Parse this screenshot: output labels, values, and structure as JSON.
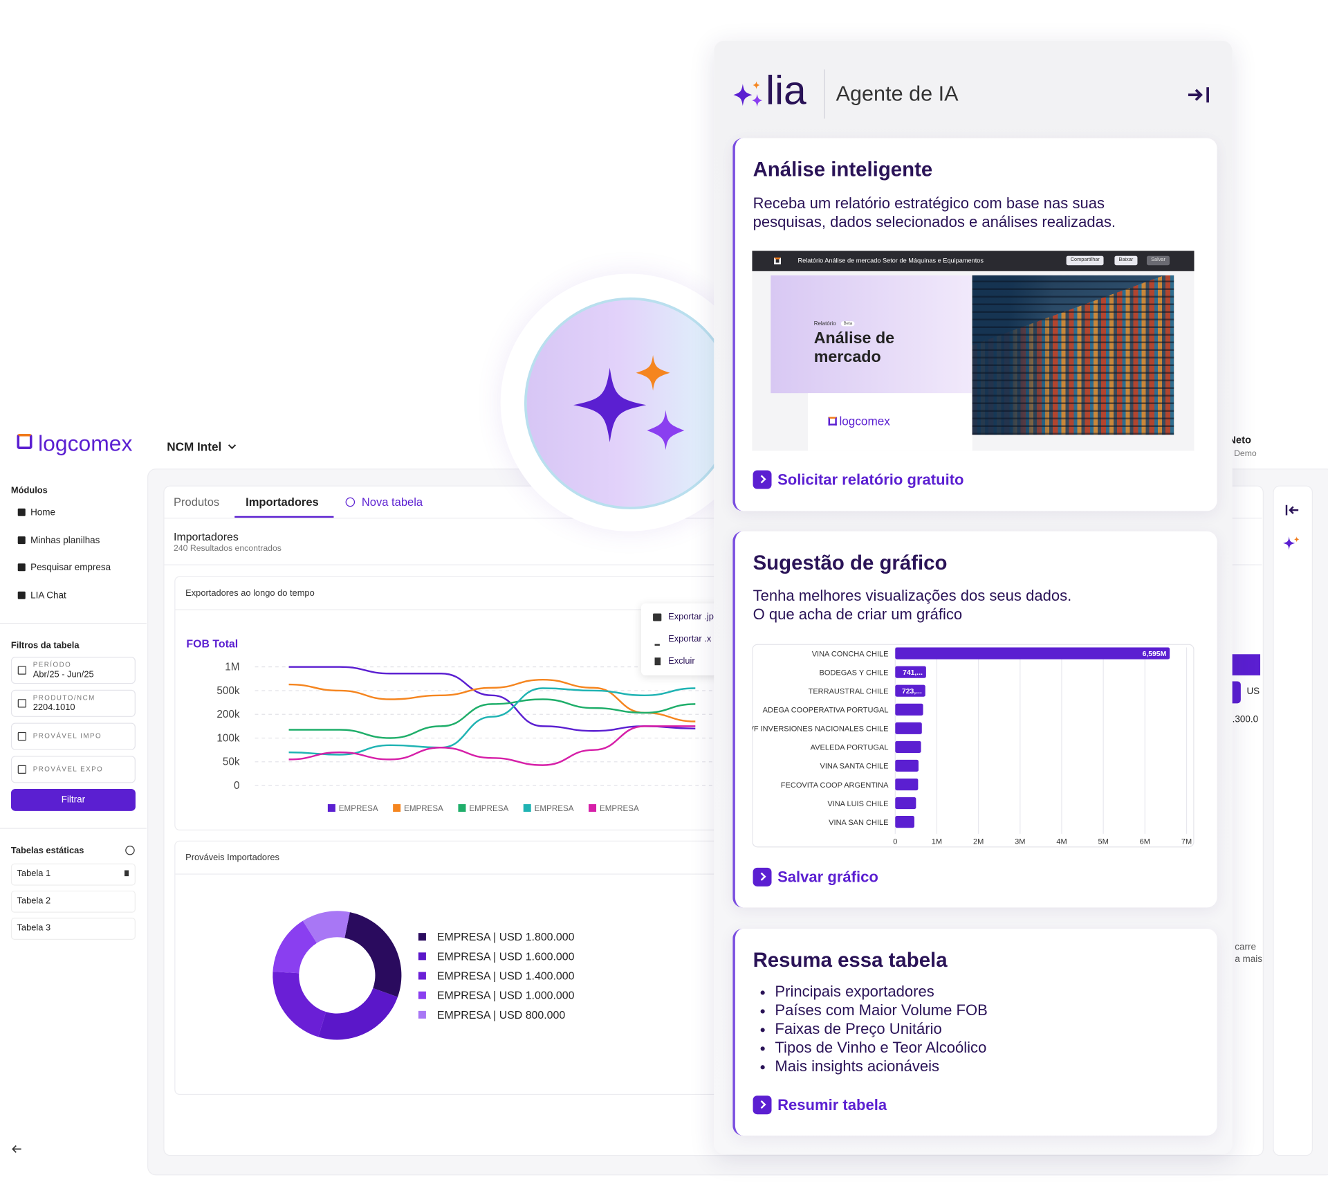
{
  "header": {
    "brand": "logcomex",
    "module": "NCM Intel",
    "user_name": "o Neto",
    "user_role": "Demo"
  },
  "sidebar": {
    "modules_title": "Módulos",
    "modules": [
      "Home",
      "Minhas planilhas",
      "Pesquisar empresa",
      "LIA Chat"
    ],
    "filters_title": "Filtros da tabela",
    "filters": [
      {
        "label": "PERÍODO",
        "value": "Abr/25 - Jun/25"
      },
      {
        "label": "PRODUTO/NCM",
        "value": "2204.1010"
      },
      {
        "label": "PROVÁVEL IMPO"
      },
      {
        "label": "PROVÁVEL EXPO"
      }
    ],
    "filter_button": "Filtrar",
    "tables_title": "Tabelas estáticas",
    "tables": [
      "Tabela 1",
      "Tabela 2",
      "Tabela 3"
    ]
  },
  "main": {
    "tabs": [
      "Produtos",
      "Importadores"
    ],
    "new_tab": "Nova tabela",
    "table_title": "Importadores",
    "results": "240 Resultados encontrados",
    "export_menu": [
      "Exportar .jp",
      "Exportar .x",
      "Excluir"
    ],
    "fragments": [
      "US",
      ".300.0",
      "carre",
      "a mais"
    ]
  },
  "chart_data": [
    {
      "type": "line",
      "title": "Exportadores ao longo do tempo",
      "ylabel": "FOB Total",
      "categories": [
        null,
        null,
        null,
        null,
        null,
        null,
        null,
        null,
        null
      ],
      "ylim": [
        0,
        1000000
      ],
      "yticks": [
        0,
        {
          "value": 50000,
          "label": "50k"
        },
        {
          "value": 100000,
          "label": "100k"
        },
        {
          "value": 200000,
          "label": "200k"
        },
        {
          "value": 500000,
          "label": "500k"
        },
        {
          "value": 1000000,
          "label": "1M"
        }
      ],
      "grid": true,
      "legend": "bottom",
      "series": [
        {
          "name": "EMPRESA",
          "color": "#5b1fd1",
          "values": [
            1000000,
            1000000,
            860000,
            860000,
            440000,
            150000,
            130000,
            150000,
            140000
          ]
        },
        {
          "name": "EMPRESA",
          "color": "#f5851f",
          "values": [
            630000,
            500000,
            390000,
            440000,
            560000,
            730000,
            560000,
            220000,
            170000
          ]
        },
        {
          "name": "EMPRESA",
          "color": "#1fae6a",
          "values": [
            135000,
            135000,
            100000,
            150000,
            330000,
            390000,
            280000,
            220000,
            330000
          ]
        },
        {
          "name": "EMPRESA",
          "color": "#1fb3b3",
          "values": [
            70000,
            65000,
            85000,
            80000,
            190000,
            550000,
            500000,
            440000,
            550000
          ]
        },
        {
          "name": "EMPRESA",
          "color": "#d61fa8",
          "values": [
            55000,
            70000,
            55000,
            80000,
            58000,
            43000,
            75000,
            150000,
            150000
          ]
        }
      ]
    },
    {
      "type": "pie",
      "donut": true,
      "title": "Prováveis Importadores",
      "labels": [
        "EMPRESA | USD 1.800.000",
        "EMPRESA | USD 1.600.000",
        "EMPRESA | USD 1.400.000",
        "EMPRESA | USD 1.000.000",
        "EMPRESA | USD 800.000"
      ],
      "values": [
        1800000,
        1600000,
        1400000,
        1000000,
        800000
      ],
      "colors": [
        "#2a0b5e",
        "#5b17c9",
        "#6a1fd6",
        "#8a3ff0",
        "#a877f5"
      ]
    },
    {
      "type": "bar",
      "orientation": "horizontal",
      "categories": [
        "VINA CONCHA CHILE",
        "BODEGAS Y CHILE",
        "TERRAUSTRAL CHILE",
        "ADEGA COOPERATIVA PORTUGAL",
        "VF INVERSIONES NACIONALES CHILE",
        "AVELEDA PORTUGAL",
        "VINA SANTA CHILE",
        "FECOVITA COOP ARGENTINA",
        "VINA LUIS CHILE",
        "VINA SAN CHILE"
      ],
      "values": [
        6595000,
        741000,
        723000,
        670000,
        640000,
        620000,
        560000,
        550000,
        500000,
        460000
      ],
      "value_labels": [
        "6,595M",
        "741,...",
        "723,...",
        null,
        null,
        null,
        null,
        null,
        null,
        null
      ],
      "color": "#5b1fd1",
      "grid": true,
      "xlim": [
        0,
        7000000
      ],
      "xticks": [
        0,
        {
          "value": 1000000,
          "label": "1M"
        },
        {
          "value": 2000000,
          "label": "2M"
        },
        {
          "value": 3000000,
          "label": "3M"
        },
        {
          "value": 4000000,
          "label": "4M"
        },
        {
          "value": 5000000,
          "label": "5M"
        },
        {
          "value": 6000000,
          "label": "6M"
        },
        {
          "value": 7000000,
          "label": "7M"
        }
      ]
    }
  ],
  "lia": {
    "brand": "lia",
    "title": "Agente de IA",
    "cards": [
      {
        "title": "Análise inteligente",
        "text": [
          "Receba um relatório estratégico com base nas suas",
          "pesquisas, dados selecionados e análises realizadas."
        ],
        "action": "Solicitar relatório gratuito",
        "preview": {
          "bar_title": "Relatório Análise de mercado Setor de Máquinas e Equipamentos",
          "buttons": [
            "Compartilhar",
            "Baixar",
            "Salvar"
          ],
          "tag": "Relatório",
          "badge": "Beta",
          "heading": [
            "Análise de",
            "mercado"
          ],
          "brand": "logcomex"
        }
      },
      {
        "title": "Sugestão de gráfico",
        "text": [
          "Tenha melhores visualizações dos seus dados.",
          "O que acha de criar um gráfico"
        ],
        "action": "Salvar gráfico"
      },
      {
        "title": "Resuma essa tabela",
        "bullets": [
          "Principais exportadores",
          "Países com Maior Volume FOB",
          "Faixas de Preço Unitário",
          "Tipos de Vinho e Teor Alcoólico",
          "Mais insights acionáveis"
        ],
        "action": "Resumir tabela"
      }
    ]
  }
}
